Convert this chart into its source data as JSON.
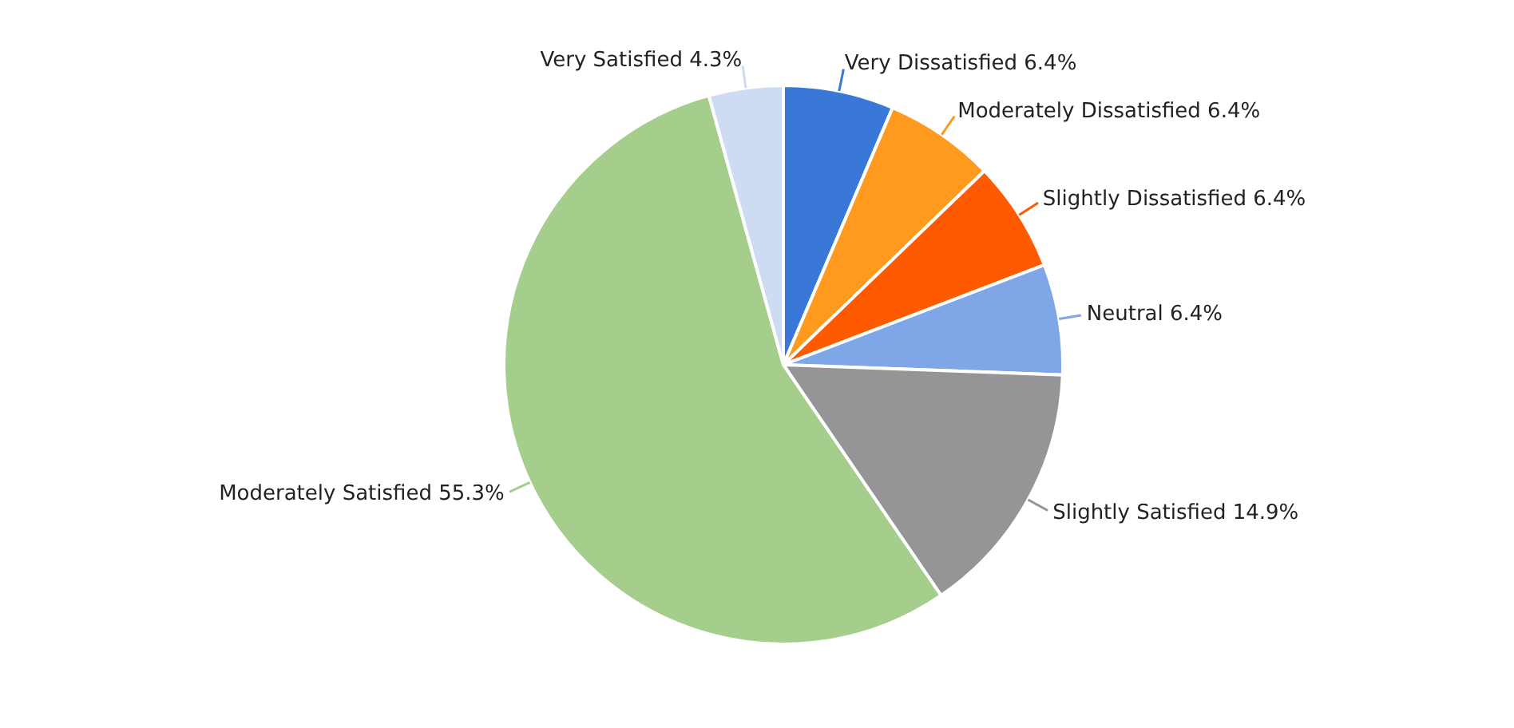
{
  "chart_data": {
    "type": "pie",
    "categories": [
      "Very Dissatisfied",
      "Moderately Dissatisfied",
      "Slightly Dissatisfied",
      "Neutral",
      "Slightly Satisfied",
      "Moderately Satisfied",
      "Very Satisfied"
    ],
    "values": [
      6.4,
      6.4,
      6.4,
      6.4,
      14.9,
      55.3,
      4.3
    ],
    "value_labels": [
      "6.4%",
      "6.4%",
      "6.4%",
      "6.4%",
      "14.9%",
      "55.3%",
      "4.3%"
    ],
    "colors": [
      "#3a78d8",
      "#ff9a1f",
      "#ff5a00",
      "#7fa7e8",
      "#959598",
      "#a5cd8c",
      "#cddcf3"
    ],
    "legend": false
  }
}
